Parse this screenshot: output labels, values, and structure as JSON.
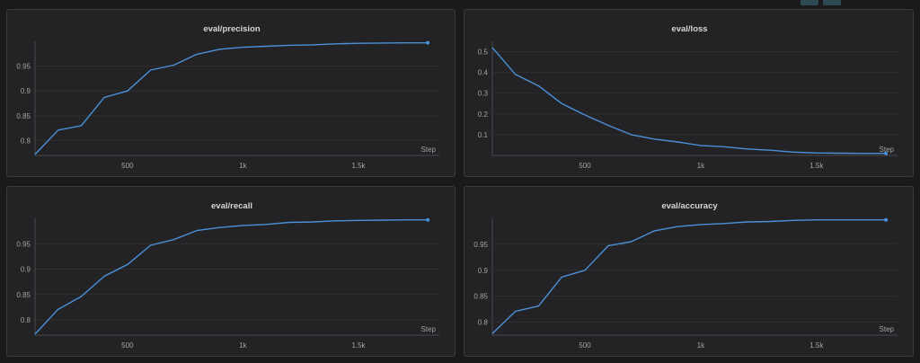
{
  "colors": {
    "line": "#4a90d9",
    "grid": "#2f2f32",
    "axis": "#4a4a4e"
  },
  "chart_data": [
    {
      "type": "line",
      "title": "eval/precision",
      "xlabel": "Step",
      "ylabel": "",
      "xlim": [
        100,
        1850
      ],
      "ylim": [
        0.77,
        1.0
      ],
      "xticks": [
        {
          "v": 500,
          "label": "500"
        },
        {
          "v": 1000,
          "label": "1k"
        },
        {
          "v": 1500,
          "label": "1.5k"
        }
      ],
      "yticks": [
        {
          "v": 0.8,
          "label": "0.8"
        },
        {
          "v": 0.85,
          "label": "0.85"
        },
        {
          "v": 0.9,
          "label": "0.9"
        },
        {
          "v": 0.95,
          "label": "0.95"
        }
      ],
      "x": [
        100,
        200,
        300,
        400,
        500,
        600,
        700,
        800,
        900,
        1000,
        1100,
        1200,
        1300,
        1400,
        1500,
        1600,
        1700,
        1800
      ],
      "y": [
        0.772,
        0.821,
        0.83,
        0.887,
        0.9,
        0.942,
        0.952,
        0.974,
        0.984,
        0.988,
        0.99,
        0.992,
        0.993,
        0.995,
        0.996,
        0.9965,
        0.997,
        0.997
      ],
      "grid": true
    },
    {
      "type": "line",
      "title": "eval/loss",
      "xlabel": "Step",
      "ylabel": "",
      "xlim": [
        100,
        1850
      ],
      "ylim": [
        0.0,
        0.55
      ],
      "xticks": [
        {
          "v": 500,
          "label": "500"
        },
        {
          "v": 1000,
          "label": "1k"
        },
        {
          "v": 1500,
          "label": "1.5k"
        }
      ],
      "yticks": [
        {
          "v": 0.1,
          "label": "0.1"
        },
        {
          "v": 0.2,
          "label": "0.2"
        },
        {
          "v": 0.3,
          "label": "0.3"
        },
        {
          "v": 0.4,
          "label": "0.4"
        },
        {
          "v": 0.5,
          "label": "0.5"
        }
      ],
      "x": [
        100,
        200,
        300,
        400,
        500,
        600,
        700,
        800,
        900,
        1000,
        1100,
        1200,
        1300,
        1400,
        1500,
        1600,
        1700,
        1800
      ],
      "y": [
        0.52,
        0.39,
        0.335,
        0.25,
        0.195,
        0.145,
        0.1,
        0.079,
        0.065,
        0.048,
        0.042,
        0.031,
        0.025,
        0.016,
        0.012,
        0.011,
        0.01,
        0.01
      ],
      "grid": true
    },
    {
      "type": "line",
      "title": "eval/recall",
      "xlabel": "Step",
      "ylabel": "",
      "xlim": [
        100,
        1850
      ],
      "ylim": [
        0.77,
        1.0
      ],
      "xticks": [
        {
          "v": 500,
          "label": "500"
        },
        {
          "v": 1000,
          "label": "1k"
        },
        {
          "v": 1500,
          "label": "1.5k"
        }
      ],
      "yticks": [
        {
          "v": 0.8,
          "label": "0.8"
        },
        {
          "v": 0.85,
          "label": "0.85"
        },
        {
          "v": 0.9,
          "label": "0.9"
        },
        {
          "v": 0.95,
          "label": "0.95"
        }
      ],
      "x": [
        100,
        200,
        300,
        400,
        500,
        600,
        700,
        800,
        900,
        1000,
        1100,
        1200,
        1300,
        1400,
        1500,
        1600,
        1700,
        1800
      ],
      "y": [
        0.772,
        0.821,
        0.846,
        0.886,
        0.909,
        0.947,
        0.958,
        0.976,
        0.982,
        0.986,
        0.988,
        0.992,
        0.993,
        0.995,
        0.996,
        0.9965,
        0.997,
        0.997
      ],
      "grid": true
    },
    {
      "type": "line",
      "title": "eval/accuracy",
      "xlabel": "Step",
      "ylabel": "",
      "xlim": [
        100,
        1850
      ],
      "ylim": [
        0.775,
        1.0
      ],
      "xticks": [
        {
          "v": 500,
          "label": "500"
        },
        {
          "v": 1000,
          "label": "1k"
        },
        {
          "v": 1500,
          "label": "1.5k"
        }
      ],
      "yticks": [
        {
          "v": 0.8,
          "label": "0.8"
        },
        {
          "v": 0.85,
          "label": "0.85"
        },
        {
          "v": 0.9,
          "label": "0.9"
        },
        {
          "v": 0.95,
          "label": "0.95"
        }
      ],
      "x": [
        100,
        200,
        300,
        400,
        500,
        600,
        700,
        800,
        900,
        1000,
        1100,
        1200,
        1300,
        1400,
        1500,
        1600,
        1700,
        1800
      ],
      "y": [
        0.778,
        0.821,
        0.831,
        0.887,
        0.9,
        0.947,
        0.955,
        0.976,
        0.984,
        0.988,
        0.99,
        0.993,
        0.994,
        0.996,
        0.997,
        0.997,
        0.997,
        0.997
      ],
      "grid": true
    }
  ]
}
